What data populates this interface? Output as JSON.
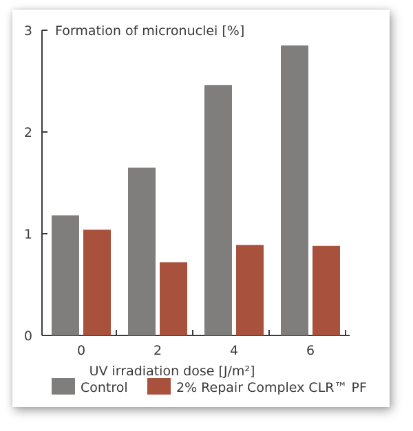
{
  "chart_data": {
    "type": "bar",
    "title": "Formation of micronuclei [%]",
    "xlabel": "UV irradiation dose [J/m²]",
    "ylabel": "",
    "categories": [
      "0",
      "2",
      "4",
      "6"
    ],
    "yticks": [
      "0",
      "1",
      "2",
      "3"
    ],
    "ylim": [
      0,
      3
    ],
    "grid": false,
    "legend_position": "bottom",
    "series": [
      {
        "name": "Control",
        "color": "#807e7d",
        "values": [
          1.18,
          1.65,
          2.46,
          2.85
        ]
      },
      {
        "name": "2% Repair Complex CLR™ PF",
        "color": "#a8513d",
        "values": [
          1.04,
          0.72,
          0.89,
          0.88
        ]
      }
    ]
  }
}
